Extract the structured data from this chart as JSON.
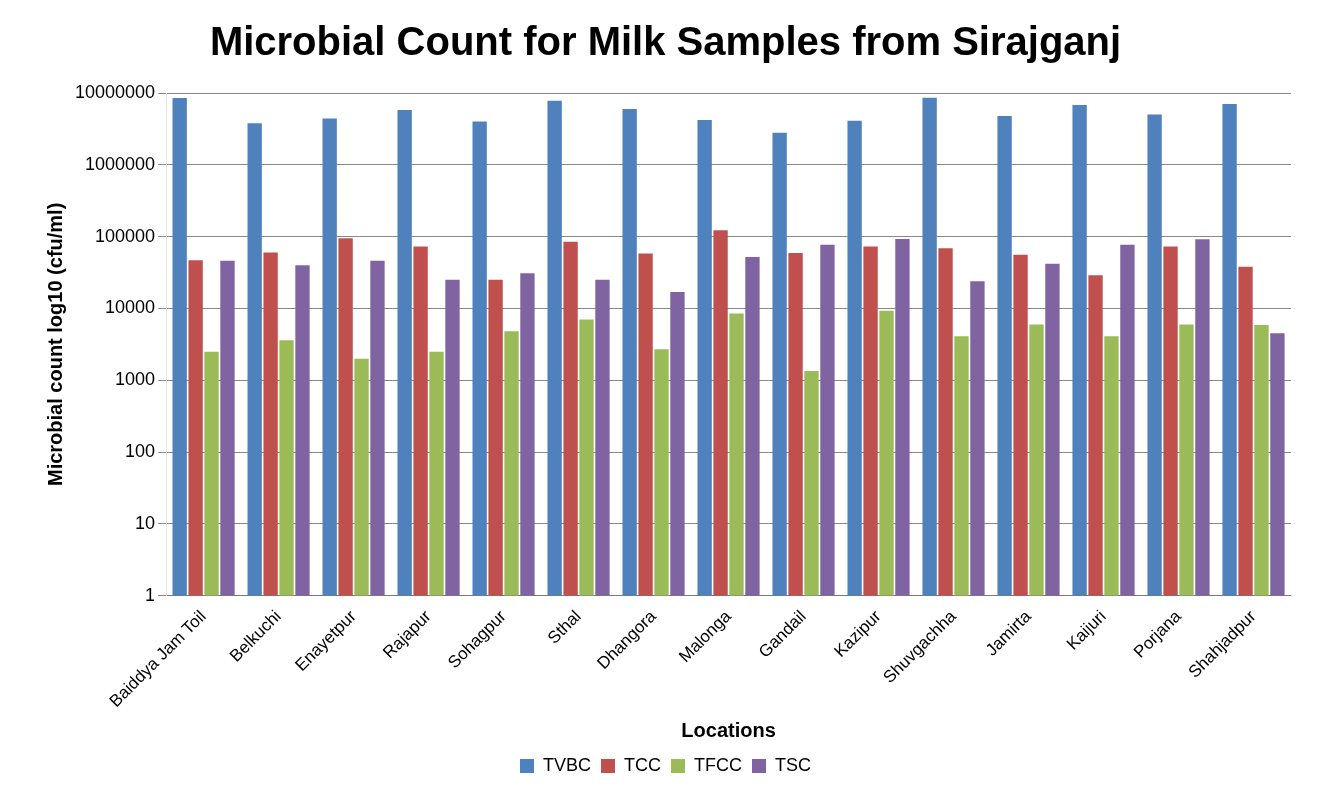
{
  "chart_data": {
    "type": "bar",
    "title": "Microbial Count for Milk Samples from Sirajganj",
    "xlabel": "Locations",
    "ylabel": "Microbial count log10 (cfu/ml)",
    "categories": [
      "Baiddya Jam Toil",
      "Belkuchi",
      "Enayetpur",
      "Rajapur",
      "Sohagpur",
      "Sthal",
      "Dhangora",
      "Malonga",
      "Gandail",
      "Kazipur",
      "Shuvgachha",
      "Jamirta",
      "Kaijuri",
      "Porjana",
      "Shahjadpur"
    ],
    "series": [
      {
        "name": "TVBC",
        "color": "#4f81bd",
        "values": [
          8500000,
          3800000,
          4400000,
          5800000,
          4000000,
          7800000,
          6000000,
          4200000,
          2800000,
          4100000,
          8600000,
          4800000,
          6800000,
          5000000,
          7000000
        ]
      },
      {
        "name": "TCC",
        "color": "#c0504d",
        "values": [
          47000,
          60000,
          95000,
          73000,
          25000,
          85000,
          58000,
          123000,
          59000,
          73000,
          69000,
          56000,
          29000,
          73000,
          38000
        ]
      },
      {
        "name": "TFCC",
        "color": "#9bbb59",
        "values": [
          2500,
          3600,
          2000,
          2500,
          4800,
          7000,
          2700,
          8500,
          1350,
          9300,
          4100,
          6000,
          4100,
          6000,
          5900
        ]
      },
      {
        "name": "TSC",
        "color": "#8064a2",
        "values": [
          46000,
          40000,
          46000,
          25000,
          31000,
          25000,
          17000,
          52000,
          77000,
          93000,
          24000,
          42000,
          77000,
          92000,
          4500
        ]
      }
    ],
    "log": true,
    "ylim": [
      1,
      10000000
    ],
    "yticks": [
      1,
      10,
      100,
      1000,
      10000,
      100000,
      1000000,
      10000000
    ],
    "grid": "y",
    "legend": "bottom"
  }
}
